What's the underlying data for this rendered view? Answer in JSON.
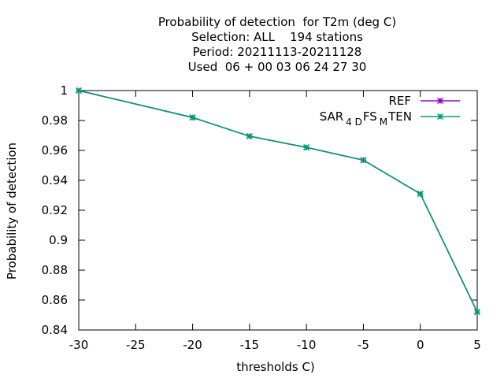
{
  "chart_data": {
    "type": "line",
    "title_lines": [
      "Probability of detection  for T2m (deg C)",
      "Selection: ALL    194 stations",
      "Period: 20211113-20211128",
      "Used  06 + 00 03 06 24 27 30"
    ],
    "xlabel": "thresholds C)",
    "ylabel": "Probability of detection",
    "xlim": [
      -30,
      5
    ],
    "ylim": [
      0.84,
      1.0
    ],
    "x_ticks": [
      "-30",
      "-25",
      "-20",
      "-15",
      "-10",
      "-5",
      "0",
      "5"
    ],
    "y_ticks": [
      "0.84",
      "0.86",
      "0.88",
      "0.9",
      "0.92",
      "0.94",
      "0.96",
      "0.98",
      "1"
    ],
    "grid": false,
    "legend_position": "top-right",
    "x": [
      -30,
      -20,
      -15,
      -10,
      -5,
      0,
      5
    ],
    "series": [
      {
        "name": "REF",
        "color": "#9400d3",
        "values": [
          1.0,
          0.982,
          0.9695,
          0.962,
          0.9535,
          0.931,
          0.852
        ]
      },
      {
        "name": "SAR_4D FS_M TEN",
        "legend_parts": [
          "SAR",
          "4 D",
          "FS",
          "M",
          "TEN"
        ],
        "color": "#009e73",
        "values": [
          1.0,
          0.982,
          0.9695,
          0.962,
          0.9535,
          0.931,
          0.852
        ]
      }
    ]
  }
}
